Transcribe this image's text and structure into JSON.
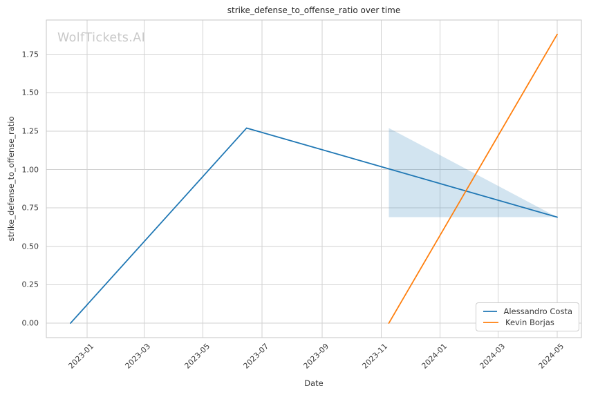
{
  "watermark": {
    "text": "WolfTickets.AI",
    "color": "#c8c8c8"
  },
  "chart_data": {
    "type": "line",
    "title": "strike_defense_to_offense_ratio over time",
    "xlabel": "Date",
    "ylabel": "strike_defense_to_offense_ratio",
    "grid": true,
    "legend_position": "lower right",
    "x_domain": [
      "2022-11-20",
      "2024-05-26"
    ],
    "y_domain": [
      -0.094,
      1.973
    ],
    "x_ticks": [
      {
        "label": "2023-01",
        "date": "2023-01-01"
      },
      {
        "label": "2023-03",
        "date": "2023-03-01"
      },
      {
        "label": "2023-05",
        "date": "2023-05-01"
      },
      {
        "label": "2023-07",
        "date": "2023-07-01"
      },
      {
        "label": "2023-09",
        "date": "2023-09-01"
      },
      {
        "label": "2023-11",
        "date": "2023-11-01"
      },
      {
        "label": "2024-01",
        "date": "2024-01-01"
      },
      {
        "label": "2024-03",
        "date": "2024-03-01"
      },
      {
        "label": "2024-05",
        "date": "2024-05-01"
      }
    ],
    "y_ticks": [
      {
        "label": "0.00",
        "value": 0.0
      },
      {
        "label": "0.25",
        "value": 0.25
      },
      {
        "label": "0.50",
        "value": 0.5
      },
      {
        "label": "0.75",
        "value": 0.75
      },
      {
        "label": "1.00",
        "value": 1.0
      },
      {
        "label": "1.25",
        "value": 1.25
      },
      {
        "label": "1.50",
        "value": 1.5
      },
      {
        "label": "1.75",
        "value": 1.75
      }
    ],
    "series": [
      {
        "name": "Alessandro Costa",
        "color": "#1f77b4",
        "points": [
          {
            "date": "2022-12-15",
            "value": 0.0
          },
          {
            "date": "2023-06-15",
            "value": 1.27
          },
          {
            "date": "2024-05-01",
            "value": 0.69
          }
        ]
      },
      {
        "name": "Kevin Borjas",
        "color": "#ff7f0e",
        "points": [
          {
            "date": "2023-11-09",
            "value": 0.0
          },
          {
            "date": "2024-05-01",
            "value": 1.88
          }
        ]
      }
    ],
    "confidence_band": {
      "series": "Alessandro Costa",
      "color": "rgba(31,119,180,0.2)",
      "points": [
        {
          "date": "2023-11-09",
          "lower": 0.69,
          "upper": 1.27
        },
        {
          "date": "2024-05-01",
          "lower": 0.69,
          "upper": 0.69
        }
      ]
    }
  }
}
